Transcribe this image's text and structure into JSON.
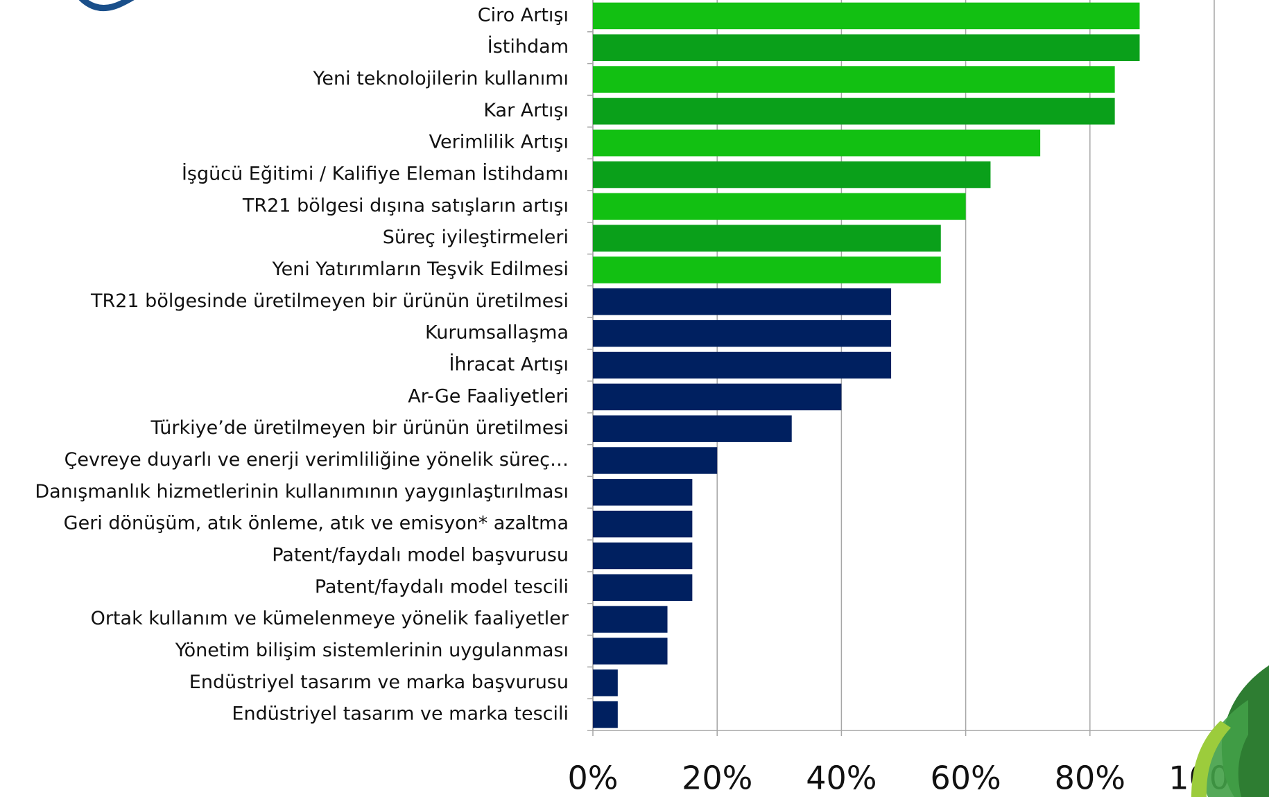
{
  "chart_data": {
    "type": "barh",
    "categories": [
      "Ciro Artışı",
      "İstihdam",
      "Yeni teknolojilerin kullanımı",
      "Kar Artışı",
      "Verimlilik Artışı",
      "İşgücü Eğitimi / Kalifiye Eleman İstihdamı",
      "TR21 bölgesi dışına satışların artışı",
      "Süreç iyileştirmeleri",
      "Yeni Yatırımların Teşvik Edilmesi",
      "TR21 bölgesinde üretilmeyen bir ürünün üretilmesi",
      "Kurumsallaşma",
      "İhracat Artışı",
      "Ar-Ge Faaliyetleri",
      "Türkiye’de üretilmeyen bir ürünün üretilmesi",
      "Çevreye duyarlı ve enerji verimliliğine yönelik süreç…",
      "Danışmanlık hizmetlerinin kullanımının yaygınlaştırılması",
      "Geri dönüşüm, atık önleme, atık ve emisyon* azaltma",
      "Patent/faydalı model başvurusu",
      "Patent/faydalı model tescili",
      "Ortak kullanım ve kümelenmeye yönelik faaliyetler",
      "Yönetim bilişim sistemlerinin uygulanması",
      "Endüstriyel tasarım ve marka başvurusu",
      "Endüstriyel tasarım ve marka tescili"
    ],
    "values": [
      88,
      88,
      84,
      84,
      72,
      64,
      60,
      56,
      56,
      48,
      48,
      48,
      40,
      32,
      20,
      16,
      16,
      16,
      16,
      12,
      12,
      4,
      4
    ],
    "colors": [
      "#12c012",
      "#0aa01a",
      "#12c012",
      "#0aa01a",
      "#12c012",
      "#0aa01a",
      "#12c012",
      "#0aa01a",
      "#12c012",
      "#002060",
      "#002060",
      "#002060",
      "#002060",
      "#002060",
      "#002060",
      "#002060",
      "#002060",
      "#002060",
      "#002060",
      "#002060",
      "#002060",
      "#002060",
      "#002060"
    ],
    "xlim": [
      0,
      100
    ],
    "xticks": [
      {
        "value": 0,
        "label": "0%"
      },
      {
        "value": 20,
        "label": "20%"
      },
      {
        "value": 40,
        "label": "40%"
      },
      {
        "value": 60,
        "label": "60%"
      },
      {
        "value": 80,
        "label": "80%"
      },
      {
        "value": 100,
        "label": "100%"
      }
    ],
    "grid": true
  }
}
